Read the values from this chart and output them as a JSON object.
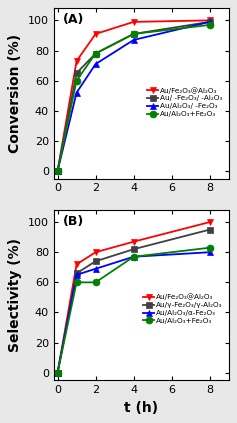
{
  "t": [
    0,
    1,
    2,
    4,
    8
  ],
  "conversion": {
    "red": [
      0,
      73,
      91,
      99,
      100
    ],
    "black": [
      0,
      65,
      78,
      91,
      99
    ],
    "blue": [
      0,
      52,
      71,
      87,
      99
    ],
    "green": [
      0,
      60,
      78,
      91,
      97
    ]
  },
  "selectivity": {
    "red": [
      0,
      72,
      80,
      87,
      100
    ],
    "black": [
      0,
      66,
      74,
      82,
      95
    ],
    "blue": [
      0,
      65,
      69,
      77,
      80
    ],
    "green": [
      0,
      60,
      60,
      77,
      83
    ]
  },
  "legend_labels_a": [
    "Au/Fe₂O₃@Al₂O₃",
    "Au/ -Fe₂O₃/ -Al₂O₃",
    "Au/Al₂O₃/ -Fe₂O₃",
    "Au/Al₂O₃+Fe₂O₃"
  ],
  "legend_labels_b": [
    "Au/Fe₂O₃@Al₂O₃",
    "Au/γ-Fe₂O₃/γ-Al₂O₃",
    "Au/Al₂O₃/α-Fe₂O₃",
    "Au/Al₂O₃+Fe₂O₃"
  ],
  "colors": [
    "#ff0000",
    "#404040",
    "#0000ff",
    "#008000"
  ],
  "markers": [
    "v",
    "s",
    "^",
    "o"
  ],
  "markerfacecolors": [
    "#ff0000",
    "#404040",
    "#0000ff",
    "#008000"
  ],
  "xlabel": "t (h)",
  "ylabel_a": "Conversion (%)",
  "ylabel_b": "Selectivity (%)",
  "label_a": "(A)",
  "label_b": "(B)",
  "ylim": [
    -5,
    108
  ],
  "xlim": [
    -0.2,
    9
  ],
  "xticks": [
    0,
    2,
    4,
    6,
    8
  ],
  "yticks": [
    0,
    20,
    40,
    60,
    80,
    100
  ],
  "legend_fontsize": 5.2,
  "axis_label_fontsize": 10,
  "tick_fontsize": 8,
  "panel_label_fontsize": 9,
  "linewidth": 1.3,
  "markersize": 5.0,
  "bg_color": "#e8e8e8"
}
